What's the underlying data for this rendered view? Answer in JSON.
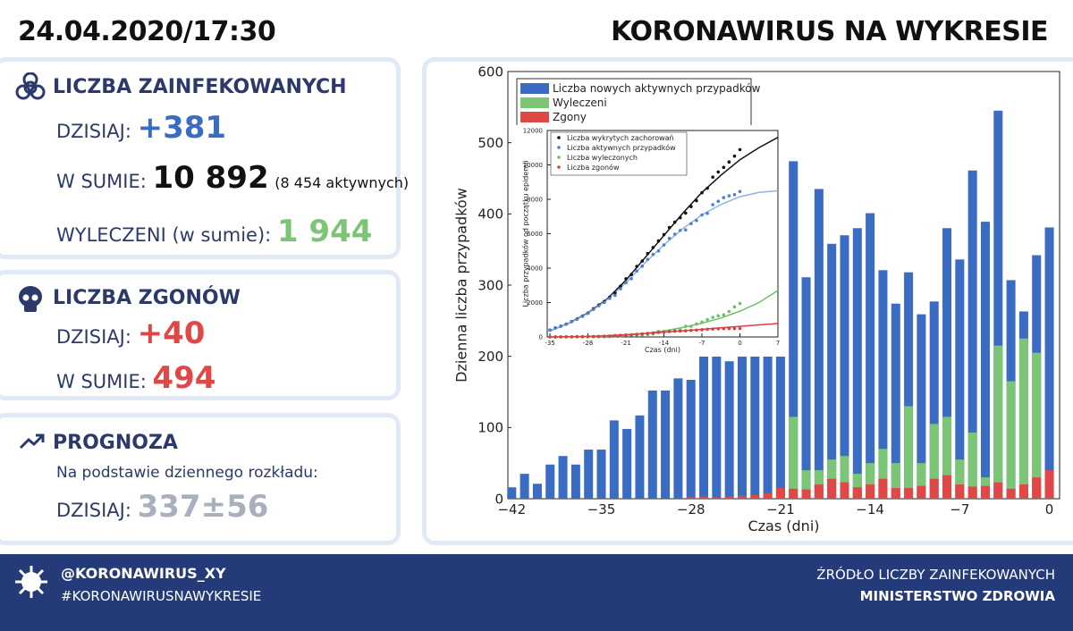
{
  "header": {
    "datetime": "24.04.2020/17:30",
    "title": "KORONAWIRUS NA WYKRESIE"
  },
  "infected": {
    "title": "LICZBA ZAINFEKOWANYCH",
    "today_label": "DZISIAJ:",
    "today": "+381",
    "total_label": "W SUMIE:",
    "total": "10 892",
    "active": "(8 454 aktywnych)",
    "recovered_label": "WYLECZENI (w sumie):",
    "recovered": "1 944"
  },
  "deaths": {
    "title": "LICZBA ZGONÓW",
    "today_label": "DZISIAJ:",
    "today": "+40",
    "total_label": "W SUMIE:",
    "total": "494"
  },
  "forecast": {
    "title": "PROGNOZA",
    "subtitle": "Na podstawie dziennego rozkładu:",
    "today_label": "DZISIAJ:",
    "today": "337±56"
  },
  "footer": {
    "handle": "@KORONAWIRUS_XY",
    "hashtag": "#KORONAWIRUSNAWYKRESIE",
    "source_label": "ŹRÓDŁO LICZBY ZAINFEKOWANYCH",
    "source": "MINISTERSTWO ZDROWIA"
  },
  "chart_data": [
    {
      "type": "bar",
      "x_label": "Czas (dni)",
      "y_label": "Dzienna liczba przypadków",
      "x": [
        -42,
        -41,
        -40,
        -39,
        -38,
        -37,
        -36,
        -35,
        -34,
        -33,
        -32,
        -31,
        -30,
        -29,
        -28,
        -27,
        -26,
        -25,
        -24,
        -23,
        -22,
        -21,
        -20,
        -19,
        -18,
        -17,
        -16,
        -15,
        -14,
        -13,
        -12,
        -11,
        -10,
        -9,
        -8,
        -7,
        -6,
        -5,
        -4,
        -3,
        -2,
        -1,
        0
      ],
      "series": [
        {
          "name": "Liczba nowych aktywnych przypadków",
          "color": "#3a6cc4",
          "values": [
            16,
            35,
            21,
            48,
            60,
            48,
            69,
            69,
            110,
            98,
            117,
            152,
            152,
            169,
            167,
            200,
            200,
            193,
            200,
            200,
            200,
            245,
            474,
            311,
            435,
            358,
            370,
            380,
            401,
            321,
            274,
            318,
            259,
            277,
            380,
            336,
            461,
            389,
            545,
            307,
            263,
            342,
            381
          ]
        },
        {
          "name": "Wyleczeni",
          "color": "#7cc576",
          "values": [
            0,
            0,
            0,
            0,
            0,
            0,
            0,
            0,
            0,
            0,
            0,
            0,
            0,
            0,
            0,
            0,
            0,
            0,
            0,
            0,
            3,
            10,
            115,
            40,
            40,
            55,
            60,
            35,
            50,
            70,
            50,
            130,
            50,
            105,
            115,
            55,
            93,
            30,
            215,
            165,
            225,
            205,
            0
          ]
        },
        {
          "name": "Zgony",
          "color": "#e04848",
          "values": [
            0,
            0,
            0,
            0,
            0,
            0,
            0,
            0,
            0,
            0,
            0,
            0,
            0,
            0,
            2,
            3,
            2,
            3,
            4,
            5,
            8,
            15,
            14,
            13,
            20,
            28,
            23,
            16,
            20,
            28,
            15,
            15,
            18,
            28,
            33,
            20,
            17,
            18,
            23,
            14,
            20,
            30,
            40
          ]
        }
      ],
      "xlim": [
        -42.3,
        0.8
      ],
      "xticks": [
        {
          "value": -42,
          "label": "−42"
        },
        {
          "value": -35,
          "label": "−35"
        },
        {
          "value": -28,
          "label": "−28"
        },
        {
          "value": -21,
          "label": "−21"
        },
        {
          "value": -14,
          "label": "−14"
        },
        {
          "value": -7,
          "label": "−7"
        },
        0
      ],
      "ylim": [
        0,
        600
      ],
      "yticks": [
        0,
        100,
        200,
        300,
        400,
        500,
        600
      ],
      "legend": "top-left"
    },
    {
      "type": "scatter",
      "x_label": "Czas (dni)",
      "y_label": "Liczba przypadków od początku epidemii",
      "x": [
        -35,
        -34,
        -33,
        -32,
        -31,
        -30,
        -29,
        -28,
        -27,
        -26,
        -25,
        -24,
        -23,
        -22,
        -21,
        -20,
        -19,
        -18,
        -17,
        -16,
        -15,
        -14,
        -13,
        -12,
        -11,
        -10,
        -9,
        -8,
        -7,
        -6,
        -5,
        -4,
        -3,
        -2,
        -1,
        0
      ],
      "series": [
        {
          "name": "Liczba wykrytych zachorowań",
          "color": "#111111",
          "values": [
            400,
            530,
            630,
            750,
            900,
            1050,
            1220,
            1390,
            1640,
            1860,
            2060,
            2310,
            2550,
            2950,
            3380,
            3630,
            4100,
            4410,
            4850,
            5200,
            5580,
            5950,
            6360,
            6670,
            6930,
            7200,
            7580,
            7920,
            8380,
            8640,
            9290,
            9590,
            9860,
            10170,
            10510,
            10890
          ]
        },
        {
          "name": "Liczba aktywnych przypadków",
          "color": "#4a7fd0",
          "values": [
            394,
            524,
            624,
            741,
            888,
            1029,
            1197,
            1361,
            1602,
            1814,
            2004,
            2240,
            2415,
            2800,
            3157,
            3385,
            3832,
            4113,
            4508,
            4794,
            4999,
            5346,
            5728,
            5974,
            6195,
            6222,
            6582,
            6764,
            7089,
            7185,
            7687,
            7886,
            8100,
            8204,
            8270,
            8452
          ]
        },
        {
          "name": "Liczba wyleczonych",
          "color": "#6cc06a",
          "values": [
            1,
            1,
            1,
            1,
            2,
            7,
            7,
            7,
            7,
            13,
            13,
            13,
            56,
            56,
            116,
            116,
            116,
            116,
            134,
            174,
            318,
            318,
            318,
            364,
            388,
            618,
            618,
            755,
            870,
            1010,
            1143,
            1230,
            1280,
            1480,
            1750,
            1944
          ]
        },
        {
          "name": "Liczba zgonów",
          "color": "#d84040",
          "values": [
            5,
            5,
            5,
            8,
            10,
            14,
            16,
            22,
            31,
            33,
            43,
            57,
            79,
            94,
            107,
            129,
            152,
            181,
            208,
            232,
            263,
            286,
            314,
            332,
            347,
            360,
            380,
            401,
            421,
            445,
            460,
            474,
            480,
            486,
            490,
            494
          ]
        }
      ],
      "fits": [
        {
          "color": "#111111",
          "x": [
            -35,
            -31.5,
            -28,
            -24.5,
            -21,
            -17.5,
            -14,
            -10.5,
            -7,
            -3.5,
            0,
            3.5,
            7
          ],
          "values": [
            350,
            800,
            1400,
            2200,
            3300,
            4600,
            5900,
            7200,
            8400,
            9400,
            10300,
            11000,
            11600
          ]
        },
        {
          "color": "#8fb3e6",
          "x": [
            -35,
            -31.5,
            -28,
            -24.5,
            -21,
            -17.5,
            -14,
            -10.5,
            -7,
            -3.5,
            0,
            3.5,
            7
          ],
          "values": [
            350,
            780,
            1370,
            2150,
            3150,
            4300,
            5350,
            6300,
            7100,
            7700,
            8150,
            8400,
            8500
          ]
        },
        {
          "color": "#6cc06a",
          "x": [
            -35,
            -31.5,
            -28,
            -24.5,
            -21,
            -17.5,
            -14,
            -10.5,
            -7,
            -3.5,
            0,
            3.5,
            7
          ],
          "values": [
            0,
            0,
            10,
            40,
            100,
            200,
            350,
            550,
            800,
            1100,
            1500,
            2000,
            2700
          ]
        },
        {
          "color": "#d84040",
          "x": [
            -35,
            -31.5,
            -28,
            -24.5,
            -21,
            -17.5,
            -14,
            -10.5,
            -7,
            -3.5,
            0,
            3.5,
            7
          ],
          "values": [
            0,
            10,
            30,
            70,
            130,
            200,
            280,
            360,
            440,
            530,
            620,
            700,
            780
          ]
        }
      ],
      "xlim": [
        -35.5,
        7
      ],
      "xticks": [
        -35,
        -28,
        -21,
        -14,
        -7,
        0,
        7
      ],
      "ylim": [
        0,
        12000
      ],
      "yticks": [
        0,
        2000,
        4000,
        6000,
        8000,
        10000,
        12000
      ],
      "legend": "top-left"
    }
  ]
}
